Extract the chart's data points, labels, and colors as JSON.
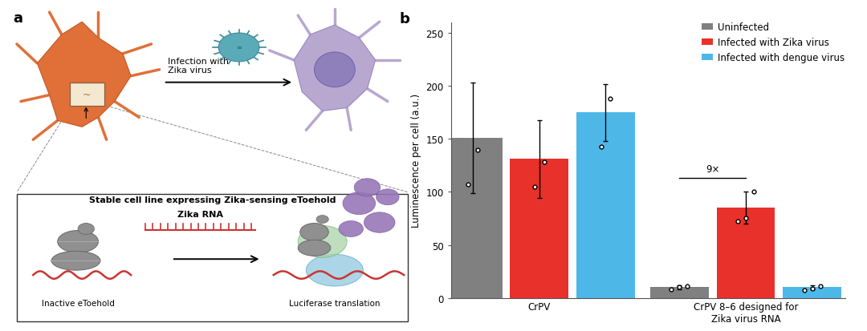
{
  "panel_b": {
    "group_labels": [
      "CrPV",
      "CrPV 8–6 designed for\nZika virus RNA"
    ],
    "bar_colors": [
      "#808080",
      "#e8312a",
      "#4db8e8"
    ],
    "legend_labels": [
      "Uninfected",
      "Infected with Zika virus",
      "Infected with dengue virus"
    ],
    "bar_width": 0.18,
    "group_centers": [
      0.32,
      0.88
    ],
    "bar_heights": {
      "CrPV": [
        151,
        131,
        175
      ],
      "CrPV86": [
        10,
        85,
        10
      ]
    },
    "error_bars": {
      "CrPV": [
        52,
        37,
        27
      ],
      "CrPV86": [
        2,
        15,
        2
      ]
    },
    "data_points": {
      "CrPV_uninfected": [
        107,
        140
      ],
      "CrPV_zika": [
        105,
        128
      ],
      "CrPV_dengue": [
        143,
        188
      ],
      "CrPV86_uninfected": [
        8,
        10,
        11
      ],
      "CrPV86_zika": [
        72,
        75,
        100
      ],
      "CrPV86_dengue": [
        7,
        9,
        11
      ]
    },
    "ylabel": "Luminescence per cell (a.u.)",
    "ylim": [
      0,
      260
    ],
    "yticks": [
      0,
      50,
      100,
      150,
      200,
      250
    ],
    "annotation_9x": {
      "y": 113,
      "text": "9×"
    },
    "background_color": "#ffffff"
  },
  "panel_a": {
    "orange_color": "#E07038",
    "orange_edge": "#C05828",
    "purple_color": "#B8A8D0",
    "purple_edge": "#9888C0",
    "nucleus_color": "#8878B8",
    "nucleus_edge": "#6858A8",
    "virus_color": "#5BAAB8",
    "virus_edge": "#3A8898",
    "inset_bg": "#FFFFFF",
    "inset_edge": "#333333",
    "gray_structure": "#909090",
    "gray_structure_edge": "#686868",
    "green_blob": "#A8D4A8",
    "blue_blob": "#90C8E0",
    "purple_blob": "#9878B8",
    "red_rna": "#CC3333"
  }
}
